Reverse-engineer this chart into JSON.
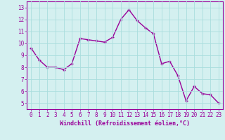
{
  "x": [
    0,
    1,
    2,
    3,
    4,
    5,
    6,
    7,
    8,
    9,
    10,
    11,
    12,
    13,
    14,
    15,
    16,
    17,
    18,
    19,
    20,
    21,
    22,
    23
  ],
  "y": [
    9.6,
    8.6,
    8.0,
    8.0,
    7.8,
    8.3,
    10.4,
    10.3,
    10.2,
    10.1,
    10.5,
    12.0,
    12.8,
    11.9,
    11.3,
    10.8,
    8.3,
    8.5,
    7.3,
    5.2,
    6.4,
    5.8,
    5.7,
    5.0
  ],
  "line_color": "#990099",
  "marker": "+",
  "marker_color": "#990099",
  "bg_color": "#d4f0f0",
  "grid_color": "#aadddd",
  "xlabel": "Windchill (Refroidissement éolien,°C)",
  "xlim": [
    -0.5,
    23.5
  ],
  "ylim": [
    4.5,
    13.5
  ],
  "yticks": [
    5,
    6,
    7,
    8,
    9,
    10,
    11,
    12,
    13
  ],
  "xticks": [
    0,
    1,
    2,
    3,
    4,
    5,
    6,
    7,
    8,
    9,
    10,
    11,
    12,
    13,
    14,
    15,
    16,
    17,
    18,
    19,
    20,
    21,
    22,
    23
  ],
  "linewidth": 1.0,
  "markersize": 3.5,
  "tick_fontsize": 5.5,
  "xlabel_fontsize": 6.0
}
